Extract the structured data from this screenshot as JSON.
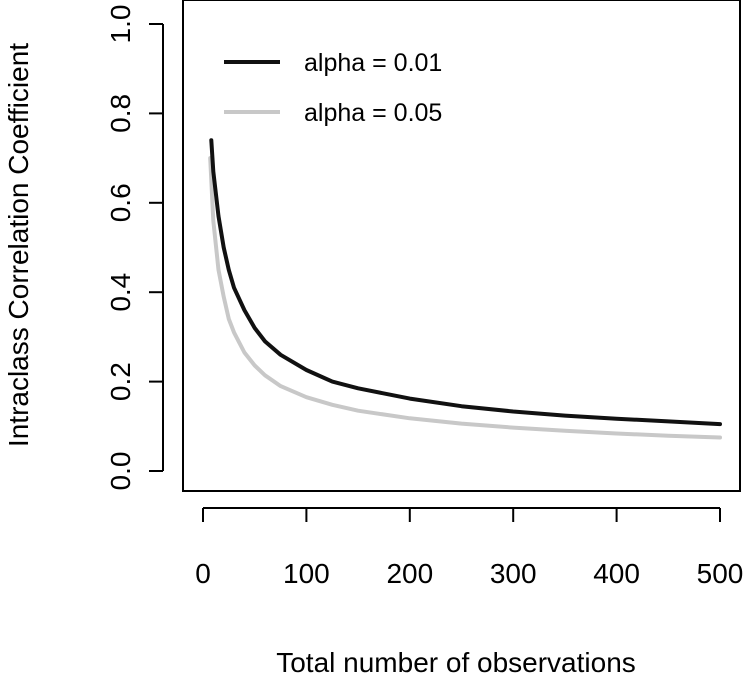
{
  "chart_data": {
    "type": "line",
    "title": "",
    "xlabel": "Total number of observations",
    "ylabel": "Intraclass Correlation Coefficient",
    "xlim": [
      0,
      500
    ],
    "ylim": [
      0,
      1
    ],
    "x_ticks": [
      0,
      100,
      200,
      300,
      400,
      500
    ],
    "x_tick_labels": [
      "0",
      "100",
      "200",
      "300",
      "400",
      "500"
    ],
    "y_ticks": [
      0,
      0.2,
      0.4,
      0.6,
      0.8,
      1
    ],
    "y_tick_labels": [
      "0.0",
      "0.2",
      "0.4",
      "0.6",
      "0.8",
      "1.0"
    ],
    "grid": false,
    "legend_position": "top-left",
    "series": [
      {
        "name": "alpha = 0.01",
        "color": "#111111",
        "x": [
          8,
          10,
          15,
          20,
          25,
          30,
          40,
          50,
          60,
          75,
          100,
          125,
          150,
          200,
          250,
          300,
          350,
          400,
          450,
          500
        ],
        "y": [
          0.74,
          0.67,
          0.57,
          0.5,
          0.45,
          0.41,
          0.36,
          0.32,
          0.29,
          0.26,
          0.226,
          0.2,
          0.185,
          0.162,
          0.145,
          0.133,
          0.124,
          0.117,
          0.111,
          0.105
        ]
      },
      {
        "name": "alpha = 0.05",
        "color": "#c8c8c8",
        "x": [
          7,
          10,
          15,
          20,
          25,
          30,
          40,
          50,
          60,
          75,
          100,
          125,
          150,
          200,
          250,
          300,
          350,
          400,
          450,
          500
        ],
        "y": [
          0.7,
          0.56,
          0.45,
          0.39,
          0.34,
          0.31,
          0.265,
          0.236,
          0.214,
          0.19,
          0.165,
          0.148,
          0.135,
          0.118,
          0.106,
          0.097,
          0.09,
          0.084,
          0.079,
          0.075
        ]
      }
    ]
  }
}
